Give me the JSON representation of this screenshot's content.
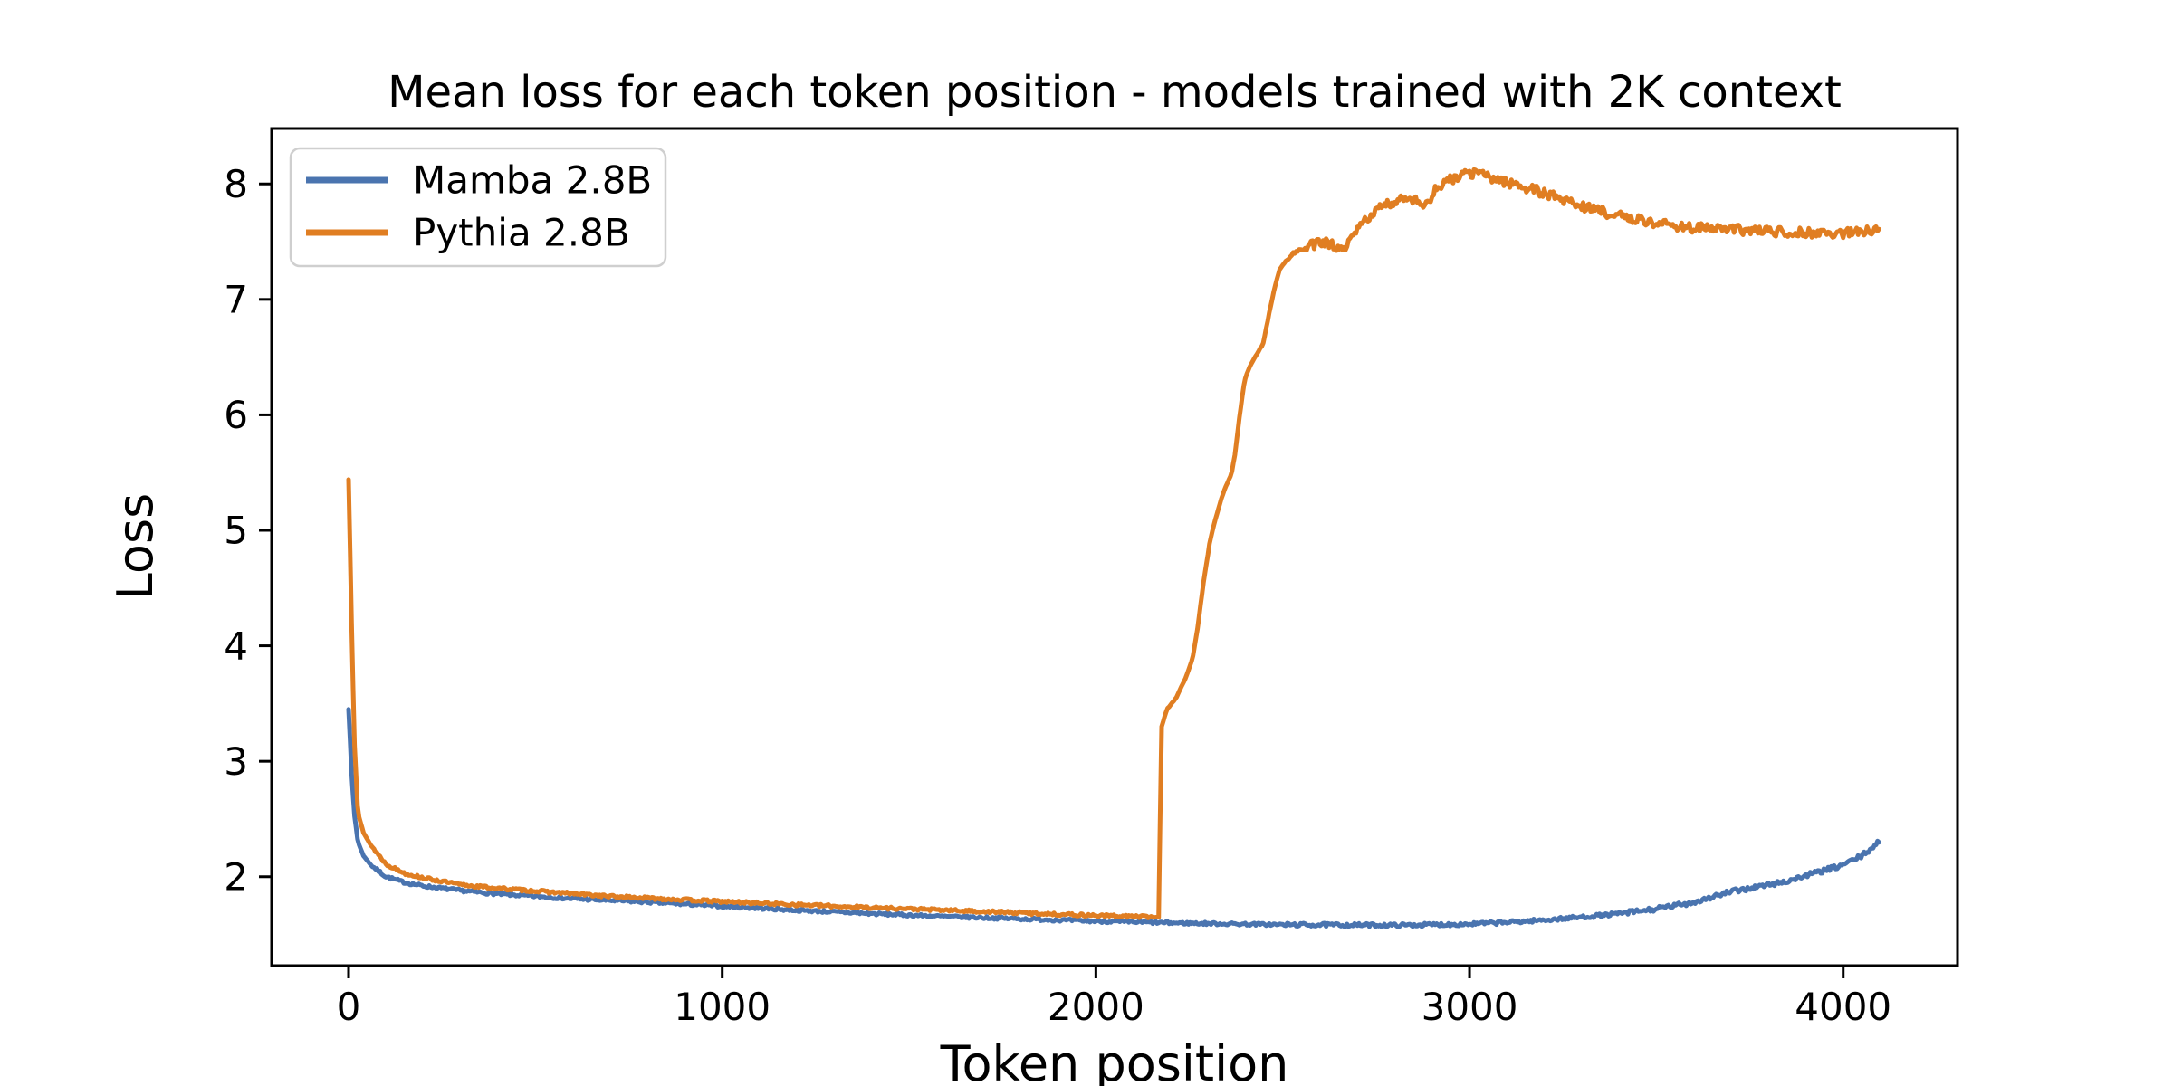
{
  "chart_data": {
    "type": "line",
    "title": "Mean loss for each token position - models trained with 2K context",
    "xlabel": "Token position",
    "ylabel": "Loss",
    "grid": false,
    "legend_position": "upper left",
    "background_color": "#ffffff",
    "axis_color": "#000000",
    "legend_border_color": "#cfcfcf",
    "xlim": [
      -206,
      4306
    ],
    "ylim": [
      1.23,
      8.48
    ],
    "x_ticks": {
      "values": [
        0,
        1000,
        2000,
        3000,
        4000
      ],
      "labels": [
        "0",
        "1000",
        "2000",
        "3000",
        "4000"
      ]
    },
    "y_ticks": {
      "values": [
        2,
        3,
        4,
        5,
        6,
        7,
        8
      ],
      "labels": [
        "2",
        "3",
        "4",
        "5",
        "6",
        "7",
        "8"
      ]
    },
    "series": [
      {
        "name": "Mamba 2.8B",
        "color": "#4a74af",
        "seed": 7,
        "noise_segments": [
          {
            "to": 60,
            "amp": 0
          },
          {
            "to": 2500,
            "amp": 0.012
          },
          {
            "to": 3400,
            "amp": 0.015
          },
          {
            "to": 4096,
            "amp": 0.02
          }
        ],
        "points": [
          [
            0,
            3.45
          ],
          [
            8,
            2.9
          ],
          [
            15,
            2.55
          ],
          [
            25,
            2.3
          ],
          [
            40,
            2.18
          ],
          [
            60,
            2.1
          ],
          [
            100,
            2.0
          ],
          [
            150,
            1.95
          ],
          [
            200,
            1.92
          ],
          [
            300,
            1.88
          ],
          [
            400,
            1.85
          ],
          [
            600,
            1.81
          ],
          [
            800,
            1.78
          ],
          [
            1000,
            1.745
          ],
          [
            1200,
            1.71
          ],
          [
            1400,
            1.68
          ],
          [
            1600,
            1.655
          ],
          [
            1800,
            1.635
          ],
          [
            2000,
            1.615
          ],
          [
            2200,
            1.6
          ],
          [
            2500,
            1.585
          ],
          [
            2800,
            1.58
          ],
          [
            3000,
            1.59
          ],
          [
            3100,
            1.605
          ],
          [
            3200,
            1.625
          ],
          [
            3300,
            1.65
          ],
          [
            3400,
            1.68
          ],
          [
            3500,
            1.72
          ],
          [
            3600,
            1.78
          ],
          [
            3700,
            1.87
          ],
          [
            3800,
            1.93
          ],
          [
            3850,
            1.96
          ],
          [
            3900,
            2.01
          ],
          [
            3990,
            2.09
          ],
          [
            4050,
            2.18
          ],
          [
            4096,
            2.3
          ]
        ]
      },
      {
        "name": "Pythia 2.8B",
        "color": "#e07e22",
        "seed": 13,
        "noise_segments": [
          {
            "to": 60,
            "amp": 0
          },
          {
            "to": 2150,
            "amp": 0.012
          },
          {
            "to": 2515,
            "amp": 0.004
          },
          {
            "to": 2560,
            "amp": 0.02
          },
          {
            "to": 4096,
            "amp": 0.042
          }
        ],
        "points": [
          [
            0,
            5.44
          ],
          [
            8,
            4.2
          ],
          [
            15,
            3.2
          ],
          [
            25,
            2.55
          ],
          [
            40,
            2.38
          ],
          [
            60,
            2.27
          ],
          [
            100,
            2.11
          ],
          [
            150,
            2.03
          ],
          [
            200,
            1.99
          ],
          [
            300,
            1.93
          ],
          [
            400,
            1.9
          ],
          [
            700,
            1.83
          ],
          [
            1000,
            1.785
          ],
          [
            1300,
            1.745
          ],
          [
            1600,
            1.71
          ],
          [
            1900,
            1.675
          ],
          [
            2050,
            1.66
          ],
          [
            2120,
            1.655
          ],
          [
            2168,
            1.65
          ],
          [
            2176,
            3.3
          ],
          [
            2190,
            3.45
          ],
          [
            2215,
            3.55
          ],
          [
            2240,
            3.72
          ],
          [
            2258,
            3.88
          ],
          [
            2272,
            4.15
          ],
          [
            2288,
            4.55
          ],
          [
            2305,
            4.9
          ],
          [
            2320,
            5.1
          ],
          [
            2338,
            5.3
          ],
          [
            2352,
            5.41
          ],
          [
            2362,
            5.48
          ],
          [
            2372,
            5.65
          ],
          [
            2385,
            6.0
          ],
          [
            2398,
            6.3
          ],
          [
            2412,
            6.42
          ],
          [
            2430,
            6.52
          ],
          [
            2448,
            6.62
          ],
          [
            2462,
            6.85
          ],
          [
            2478,
            7.1
          ],
          [
            2492,
            7.26
          ],
          [
            2508,
            7.33
          ],
          [
            2530,
            7.4
          ],
          [
            2570,
            7.46
          ],
          [
            2610,
            7.5
          ],
          [
            2645,
            7.45
          ],
          [
            2662,
            7.41
          ],
          [
            2680,
            7.5
          ],
          [
            2705,
            7.63
          ],
          [
            2748,
            7.77
          ],
          [
            2795,
            7.84
          ],
          [
            2830,
            7.89
          ],
          [
            2862,
            7.86
          ],
          [
            2880,
            7.79
          ],
          [
            2905,
            7.94
          ],
          [
            2935,
            8.01
          ],
          [
            2965,
            8.06
          ],
          [
            3000,
            8.09
          ],
          [
            3025,
            8.1
          ],
          [
            3060,
            8.05
          ],
          [
            3110,
            8.01
          ],
          [
            3160,
            7.96
          ],
          [
            3220,
            7.9
          ],
          [
            3300,
            7.81
          ],
          [
            3400,
            7.72
          ],
          [
            3500,
            7.66
          ],
          [
            3600,
            7.62
          ],
          [
            3700,
            7.605
          ],
          [
            3800,
            7.59
          ],
          [
            3900,
            7.58
          ],
          [
            4000,
            7.57
          ],
          [
            4060,
            7.59
          ],
          [
            4096,
            7.6
          ]
        ]
      }
    ]
  }
}
